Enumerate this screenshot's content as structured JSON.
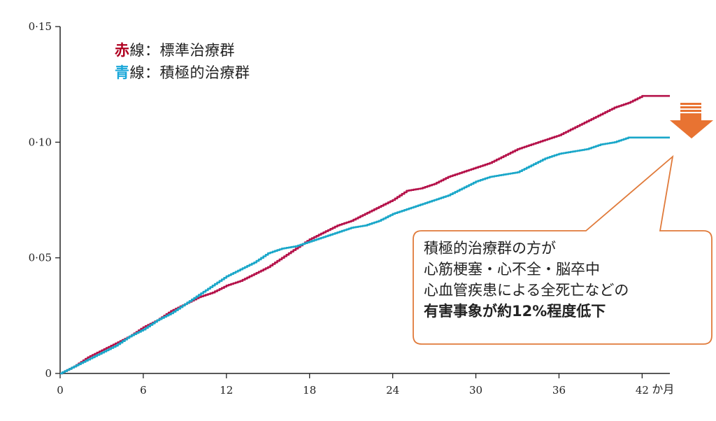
{
  "legend": {
    "red_key": "赤",
    "red_rest": "線：標準治療群",
    "blue_key": "青",
    "blue_rest": "線：積極的治療群"
  },
  "callout": {
    "line1": "積極的治療群の方が",
    "line2": "心筋梗塞・心不全・脳卒中",
    "line3": "心血管疾患による全死亡などの",
    "line4": "有害事象が約12%程度低下"
  },
  "colors": {
    "red": "#B5124A",
    "blue": "#1AA7C9",
    "red_key": "#B00020",
    "blue_key": "#1AA7D9",
    "callout_border": "#E07A3A",
    "arrow": "#E87332"
  },
  "chart_data": {
    "type": "line",
    "x_unit": "か月",
    "xlim": [
      0,
      44
    ],
    "ylim": [
      0,
      0.15
    ],
    "x_ticks": [
      "0",
      "6",
      "12",
      "18",
      "24",
      "30",
      "36",
      "42"
    ],
    "y_ticks": [
      "0",
      "0·05",
      "0·10",
      "0·15"
    ],
    "grid": false,
    "legend_position": "top-left",
    "series": [
      {
        "name": "標準治療群",
        "color": "#B5124A",
        "x": [
          0,
          1,
          2,
          3,
          4,
          5,
          6,
          7,
          8,
          9,
          10,
          11,
          12,
          13,
          14,
          15,
          16,
          17,
          18,
          19,
          20,
          21,
          22,
          23,
          24,
          25,
          26,
          27,
          28,
          29,
          30,
          31,
          32,
          33,
          34,
          35,
          36,
          37,
          38,
          39,
          40,
          41,
          42,
          44
        ],
        "y": [
          0,
          0.003,
          0.007,
          0.01,
          0.013,
          0.016,
          0.02,
          0.023,
          0.027,
          0.03,
          0.033,
          0.035,
          0.038,
          0.04,
          0.043,
          0.046,
          0.05,
          0.054,
          0.058,
          0.061,
          0.064,
          0.066,
          0.069,
          0.072,
          0.075,
          0.079,
          0.08,
          0.082,
          0.085,
          0.087,
          0.089,
          0.091,
          0.094,
          0.097,
          0.099,
          0.101,
          0.103,
          0.106,
          0.109,
          0.112,
          0.115,
          0.117,
          0.12,
          0.12
        ]
      },
      {
        "name": "積極的治療群",
        "color": "#1AA7C9",
        "x": [
          0,
          1,
          2,
          3,
          4,
          5,
          6,
          7,
          8,
          9,
          10,
          11,
          12,
          13,
          14,
          15,
          16,
          17,
          18,
          19,
          20,
          21,
          22,
          23,
          24,
          25,
          26,
          27,
          28,
          29,
          30,
          31,
          32,
          33,
          34,
          35,
          36,
          37,
          38,
          39,
          40,
          41,
          42,
          44
        ],
        "y": [
          0,
          0.003,
          0.006,
          0.009,
          0.012,
          0.016,
          0.019,
          0.023,
          0.026,
          0.03,
          0.034,
          0.038,
          0.042,
          0.045,
          0.048,
          0.052,
          0.054,
          0.055,
          0.057,
          0.059,
          0.061,
          0.063,
          0.064,
          0.066,
          0.069,
          0.071,
          0.073,
          0.075,
          0.077,
          0.08,
          0.083,
          0.085,
          0.086,
          0.087,
          0.09,
          0.093,
          0.095,
          0.096,
          0.097,
          0.099,
          0.1,
          0.102,
          0.102,
          0.102
        ]
      }
    ]
  }
}
